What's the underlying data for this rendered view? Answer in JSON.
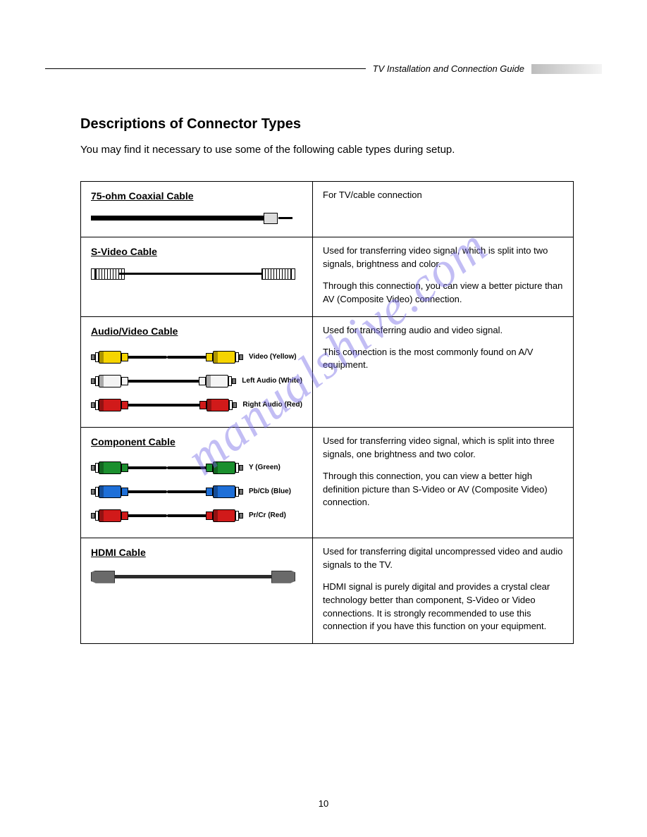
{
  "header": {
    "guide_title": "TV Installation and Connection Guide"
  },
  "section": {
    "title": "Descriptions of Connector Types",
    "intro": "You may find it necessary to use some of the following cable types during setup."
  },
  "watermark": "manualshive.com",
  "page_number": "10",
  "colors": {
    "yellow": "#f6d400",
    "white": "#f4f4f4",
    "red": "#d11a1a",
    "green": "#1b8f2e",
    "blue": "#1e6fd8",
    "hdmi_gray": "#6a6a6a",
    "cable_black": "#000000",
    "watermark": "#7a6fe8"
  },
  "cables": {
    "coax": {
      "name": "75-ohm Coaxial Cable",
      "para1": "For TV/cable connection"
    },
    "svideo": {
      "name": "S-Video Cable",
      "para1": "Used for transferring video signal, which is split into two signals, brightness and color.",
      "para2": "Through this connection, you can view a better picture than AV (Composite Video) connection."
    },
    "av": {
      "name": "Audio/Video Cable",
      "para1": "Used for transferring audio and video signal.",
      "para2": "This connection is the most commonly found on A/V equipment.",
      "rows": [
        {
          "label": "Video (Yellow)",
          "color_key": "yellow"
        },
        {
          "label": "Left Audio (White)",
          "color_key": "white"
        },
        {
          "label": "Right Audio (Red)",
          "color_key": "red"
        }
      ]
    },
    "component": {
      "name": "Component Cable",
      "para1": "Used for transferring video signal, which is split into three signals, one brightness and two color.",
      "para2": "Through this connection, you can view a better high definition picture than S-Video or AV (Composite Video) connection.",
      "rows": [
        {
          "label": "Y (Green)",
          "color_key": "green"
        },
        {
          "label": "Pb/Cb (Blue)",
          "color_key": "blue"
        },
        {
          "label": "Pr/Cr (Red)",
          "color_key": "red"
        }
      ]
    },
    "hdmi": {
      "name": "HDMI Cable",
      "para1": "Used for transferring digital uncompressed video and audio signals to the TV.",
      "para2": "HDMI signal is purely digital and provides a crystal clear technology better than component, S-Video or Video connections. It is strongly recommended to use this connection if you have this function on your equipment."
    }
  }
}
